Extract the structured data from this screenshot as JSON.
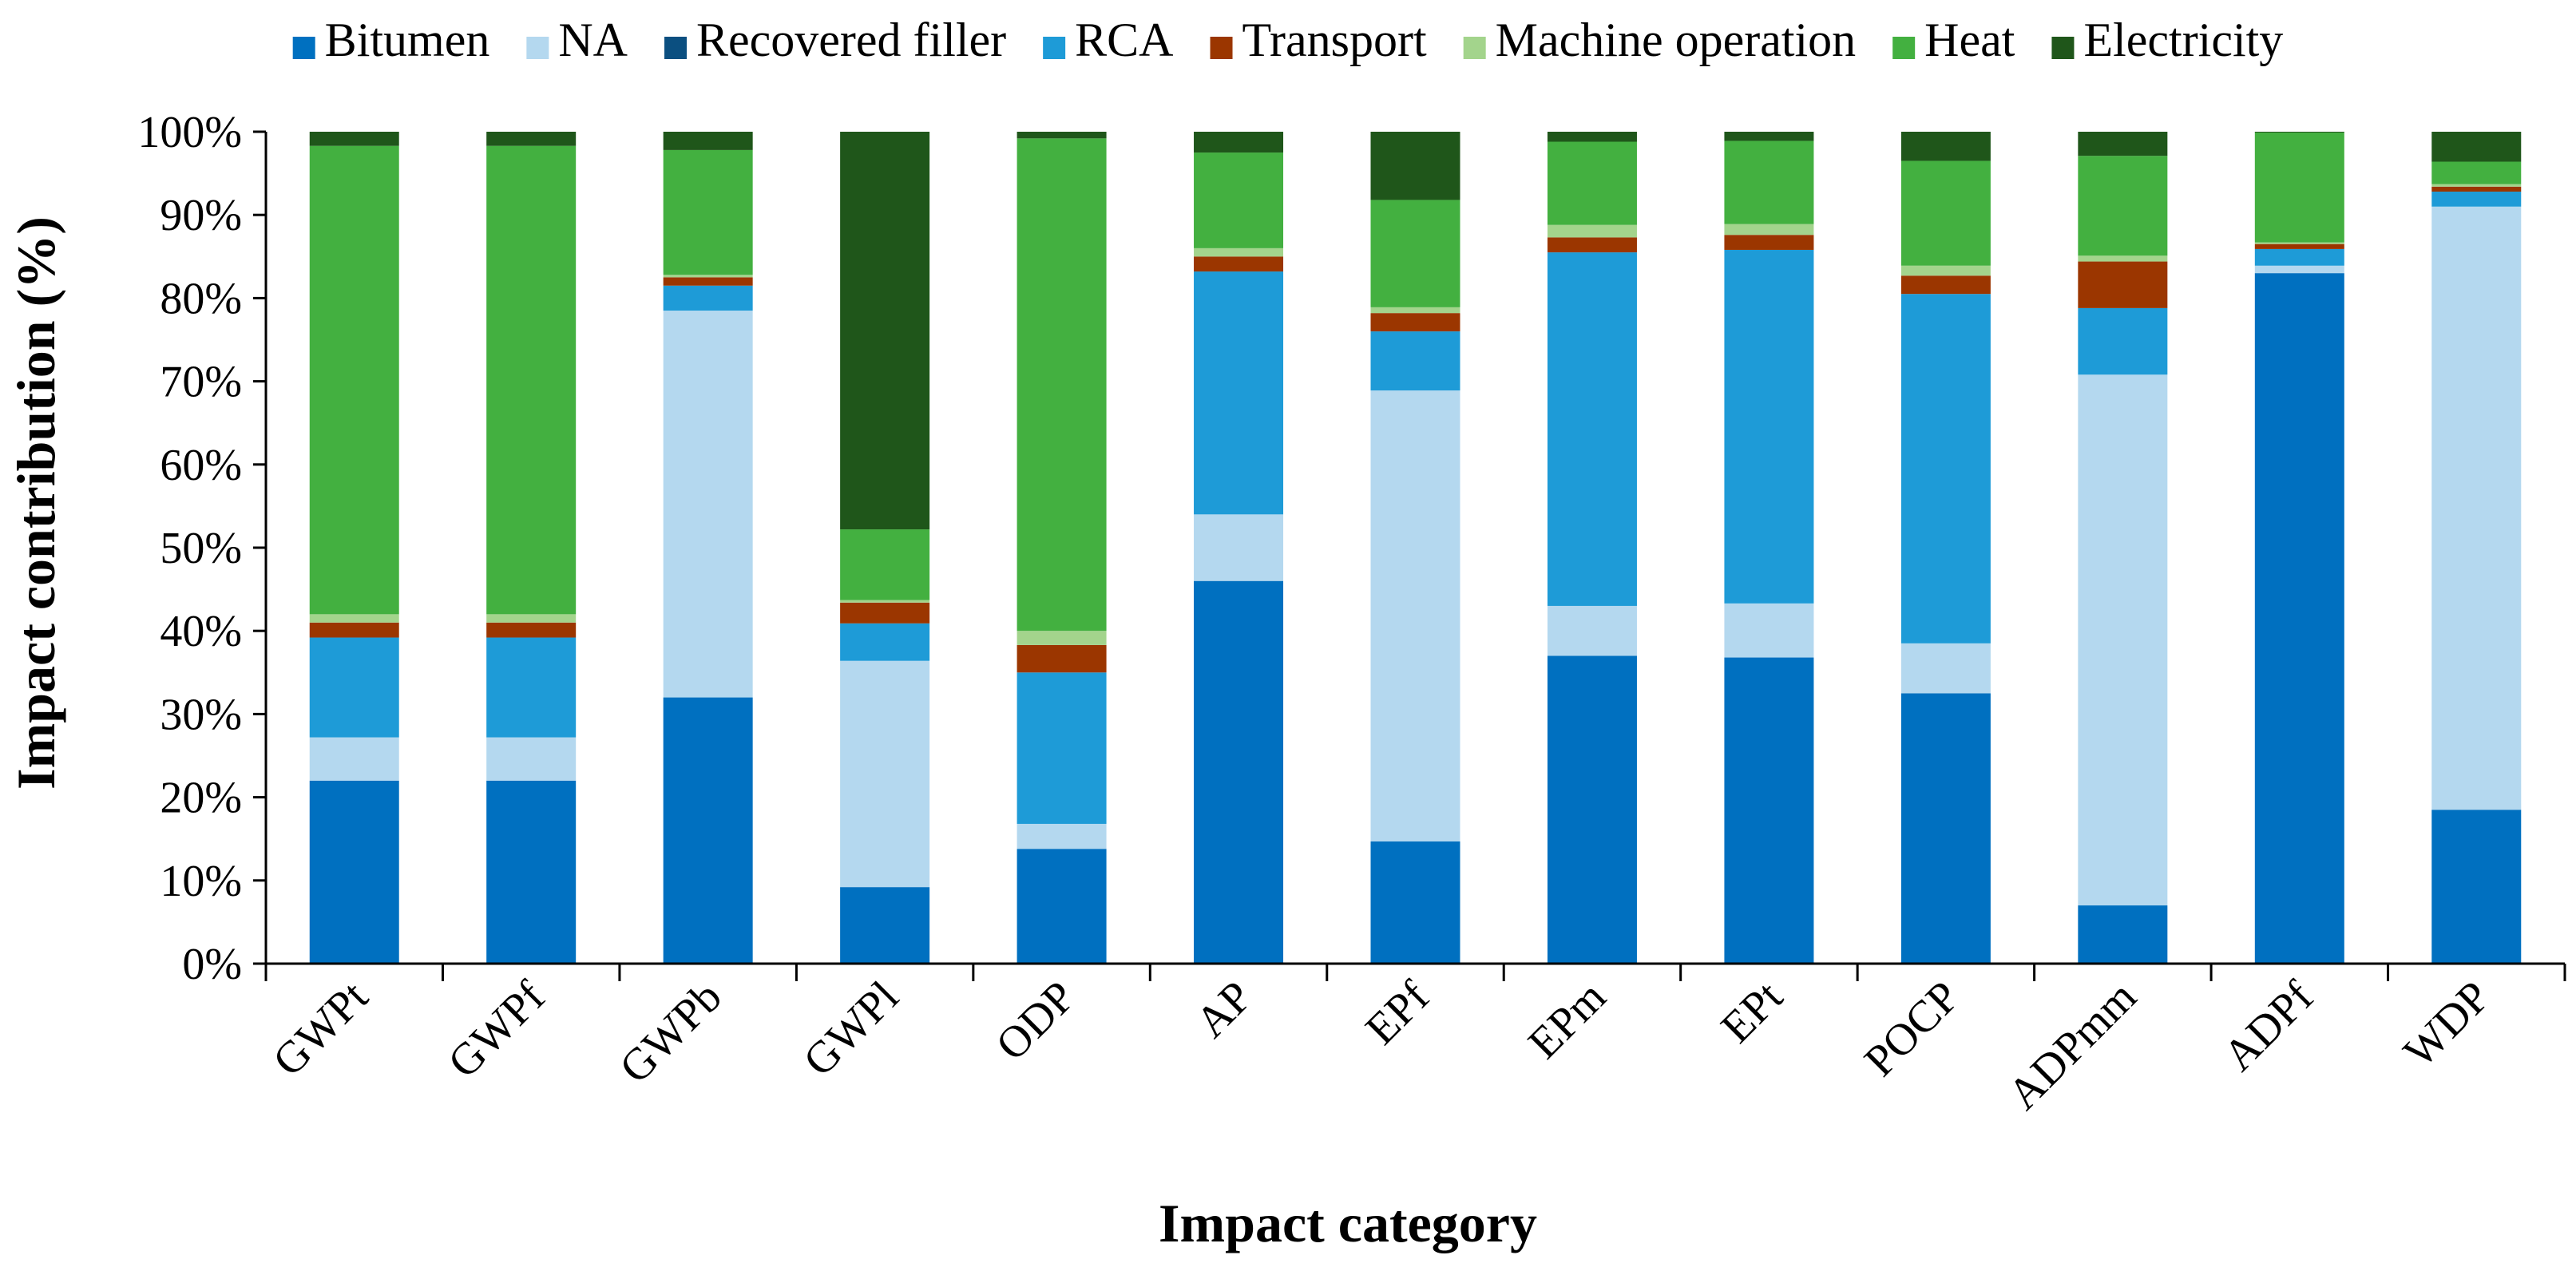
{
  "chart_data": {
    "type": "bar",
    "stacked": true,
    "percent": true,
    "title": "",
    "xlabel": "Impact category",
    "ylabel": "Impact contribution (%)",
    "ylim": [
      0,
      100
    ],
    "yticks": [
      0,
      10,
      20,
      30,
      40,
      50,
      60,
      70,
      80,
      90,
      100
    ],
    "ytick_labels": [
      "0%",
      "10%",
      "20%",
      "30%",
      "40%",
      "50%",
      "60%",
      "70%",
      "80%",
      "90%",
      "100%"
    ],
    "grid": false,
    "legend_position": "top",
    "categories": [
      "GWPt",
      "GWPf",
      "GWPb",
      "GWPl",
      "ODP",
      "AP",
      "EPf",
      "EPm",
      "EPt",
      "POCP",
      "ADPmm",
      "ADPf",
      "WDP"
    ],
    "series": [
      {
        "name": "Bitumen",
        "color": "#0070C0",
        "values": [
          22,
          22,
          32,
          9.2,
          13.8,
          46,
          14.7,
          37,
          36.8,
          32.5,
          7,
          83,
          18.5
        ]
      },
      {
        "name": "NA",
        "color": "#B4D8EF",
        "values": [
          5.2,
          5.2,
          46.5,
          27.2,
          3,
          8,
          54.2,
          6,
          6.5,
          6,
          63.8,
          0.9,
          72.5
        ]
      },
      {
        "name": "Recovered filler",
        "color": "#0B4F80",
        "values": [
          0,
          0,
          0,
          0,
          0,
          0,
          0,
          0,
          0,
          0,
          0,
          0,
          0
        ]
      },
      {
        "name": "RCA",
        "color": "#1E9BD7",
        "values": [
          12,
          12,
          3,
          4.5,
          18.2,
          29.2,
          7.1,
          42.5,
          42.5,
          42,
          8,
          2,
          1.8
        ]
      },
      {
        "name": "Transport",
        "color": "#9B3600",
        "values": [
          1.8,
          1.8,
          1,
          2.5,
          3.3,
          1.8,
          2.2,
          1.8,
          1.8,
          2.2,
          5.6,
          0.6,
          0.6
        ]
      },
      {
        "name": "Machine operation",
        "color": "#A3D48C",
        "values": [
          1,
          1,
          0.3,
          0.3,
          1.7,
          1,
          0.7,
          1.5,
          1.3,
          1.2,
          0.7,
          0.2,
          0.3
        ]
      },
      {
        "name": "Heat",
        "color": "#43B040",
        "values": [
          56.3,
          56.3,
          15,
          8.5,
          59.2,
          11.5,
          12.9,
          10,
          10,
          12.6,
          12,
          13.2,
          2.7
        ]
      },
      {
        "name": "Electricity",
        "color": "#1F561A",
        "values": [
          1.7,
          1.7,
          2.2,
          47.8,
          0.8,
          2.5,
          8.2,
          1.2,
          1.1,
          3.5,
          2.9,
          0.1,
          3.6
        ]
      }
    ]
  }
}
